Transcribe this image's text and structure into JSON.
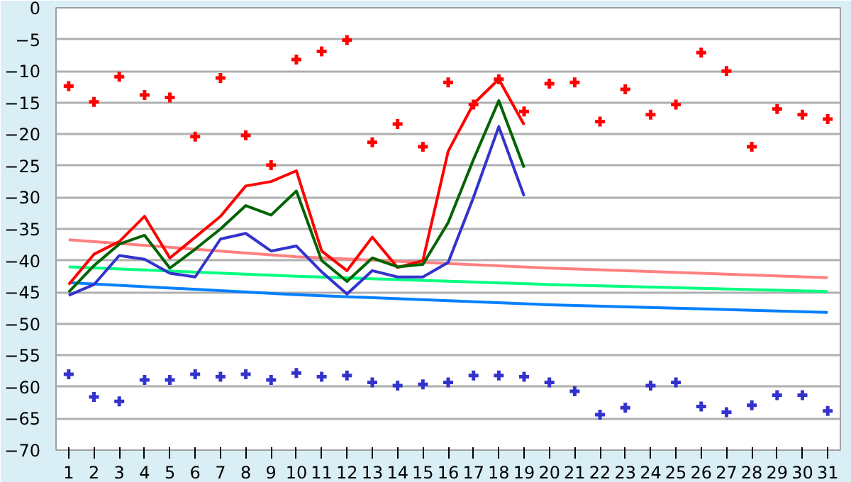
{
  "chart_data": {
    "type": "line",
    "x": [
      1,
      2,
      3,
      4,
      5,
      6,
      7,
      8,
      9,
      10,
      11,
      12,
      13,
      14,
      15,
      16,
      17,
      18,
      19,
      20,
      21,
      22,
      23,
      24,
      25,
      26,
      27,
      28,
      29,
      30,
      31
    ],
    "xlim": [
      0.5,
      31.5
    ],
    "xticks": [
      1,
      2,
      3,
      4,
      5,
      6,
      7,
      8,
      9,
      10,
      11,
      12,
      13,
      14,
      15,
      16,
      17,
      18,
      19,
      20,
      21,
      22,
      23,
      24,
      25,
      26,
      27,
      28,
      29,
      30,
      31
    ],
    "ylim": [
      -70,
      0
    ],
    "yticks": [
      -70,
      -65,
      -60,
      -55,
      -50,
      -45,
      -40,
      -35,
      -30,
      -25,
      -20,
      -15,
      -10,
      -5,
      0
    ],
    "grid": "y",
    "line_style": "solid",
    "series": [
      {
        "color": "#ff8080",
        "x": [
          1,
          10,
          20,
          31
        ],
        "values": [
          -36.7,
          -39.4,
          -41.2,
          -42.7
        ]
      },
      {
        "color": "#00ff80",
        "x": [
          1,
          10,
          20,
          31
        ],
        "values": [
          -41,
          -42.5,
          -43.8,
          -44.9
        ]
      },
      {
        "color": "#0080ff",
        "x": [
          1,
          10,
          20,
          31
        ],
        "values": [
          -43.5,
          -45.4,
          -47,
          -48.2
        ]
      },
      {
        "color": "#ff0000",
        "values": [
          -43.8,
          -39,
          -37,
          -33,
          -39.6,
          -36.3,
          -33,
          -28.2,
          -27.5,
          -25.8,
          -38.5,
          -41.6,
          -36.3,
          -41.1,
          -40,
          -22.7,
          -15.2,
          -11.3,
          -18.5,
          null,
          null,
          null,
          null,
          null,
          null,
          null,
          null,
          null,
          null,
          null,
          null
        ]
      },
      {
        "color": "#006400",
        "values": [
          -45,
          -40.8,
          -37.4,
          -36,
          -41.2,
          -38.2,
          -35,
          -31.3,
          -32.8,
          -29,
          -40,
          -43.3,
          -39.6,
          -41,
          -40.6,
          -34,
          -24,
          -14.7,
          -25.3,
          null,
          null,
          null,
          null,
          null,
          null,
          null,
          null,
          null,
          null,
          null,
          null
        ]
      },
      {
        "color": "#3333cc",
        "values": [
          -45.5,
          -43.8,
          -39.2,
          -39.8,
          -42,
          -42.6,
          -36.6,
          -35.7,
          -38.5,
          -37.7,
          -41.8,
          -45.3,
          -41.6,
          -42.6,
          -42.6,
          -40.3,
          -30,
          -18.8,
          -29.8,
          null,
          null,
          null,
          null,
          null,
          null,
          null,
          null,
          null,
          null,
          null,
          null
        ]
      },
      {
        "type": "scatter",
        "marker": "cross",
        "color": "#ff0000",
        "values": [
          -12.4,
          -14.9,
          -10.9,
          -13.8,
          -14.2,
          -20.4,
          -11.1,
          -20.2,
          -24.9,
          -8.2,
          -6.9,
          -5.1,
          -21.3,
          -18.4,
          -22,
          -11.8,
          -15.3,
          -11.3,
          -16.4,
          -12,
          -11.8,
          -18,
          -12.9,
          -16.9,
          -15.3,
          -7.1,
          -10,
          -22,
          -16,
          -16.9,
          -17.6
        ]
      },
      {
        "type": "scatter",
        "marker": "cross",
        "color": "#3333cc",
        "values": [
          -58,
          -61.6,
          -62.3,
          -58.9,
          -58.9,
          -58,
          -58.4,
          -58,
          -58.9,
          -57.8,
          -58.4,
          -58.2,
          -59.3,
          -59.8,
          -59.6,
          -59.3,
          -58.2,
          -58.2,
          -58.4,
          -59.3,
          -60.7,
          -64.4,
          -63.3,
          -59.8,
          -59.3,
          -63.1,
          -64,
          -62.9,
          -61.3,
          -61.3,
          -63.8
        ]
      }
    ]
  }
}
